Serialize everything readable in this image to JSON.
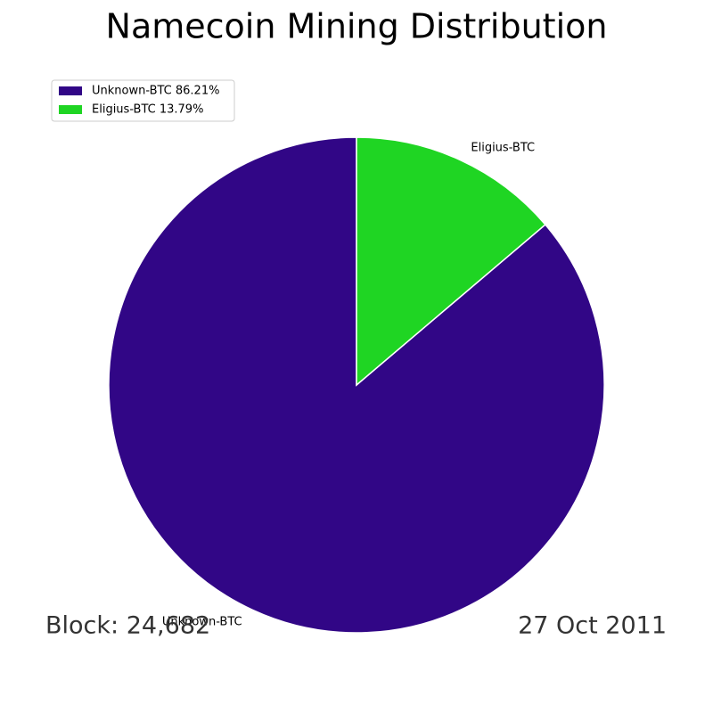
{
  "chart_data": {
    "type": "pie",
    "title": "Namecoin Mining Distribution",
    "categories": [
      "Unknown-BTC",
      "Eligius-BTC"
    ],
    "values": [
      86.21,
      13.79
    ],
    "legend_labels": [
      "Unknown-BTC 86.21%",
      "Eligius-BTC 13.79%"
    ],
    "colors": [
      "#310686",
      "#1fd523"
    ],
    "annotations": [
      "Block: 24,682",
      "27 Oct 2011"
    ]
  }
}
